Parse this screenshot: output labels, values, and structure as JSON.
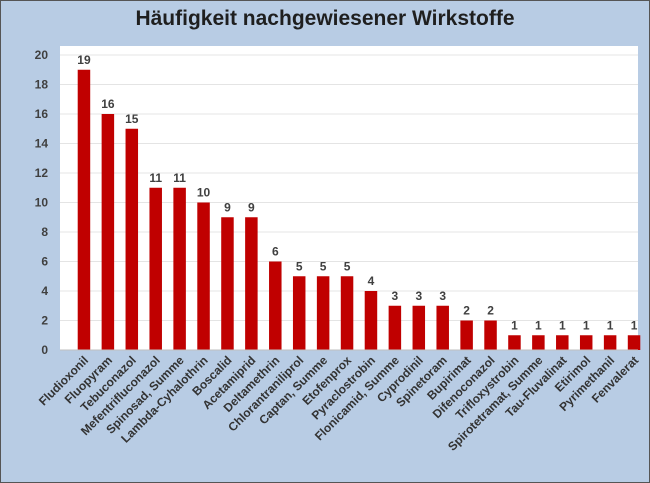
{
  "chart_data": {
    "type": "bar",
    "title": "Häufigkeit nachgewiesener Wirkstoffe",
    "xlabel": "",
    "ylabel": "",
    "ylim": [
      0,
      20
    ],
    "yticks": [
      0,
      2,
      4,
      6,
      8,
      10,
      12,
      14,
      16,
      18,
      20
    ],
    "grid": true,
    "legend": "none",
    "bar_color": "#c00000",
    "categories": [
      "Fludioxonil",
      "Fluopyram",
      "Tebuconazol",
      "Mefentrifluconazol",
      "Spinosad, Summe",
      "Lambda-Cyhalothrin",
      "Boscalid",
      "Acetamiprid",
      "Deltamethrin",
      "Chlorantraniliprol",
      "Captan, Summe",
      "Etofenprox",
      "Pyraclostrobin",
      "Flonicamid, Summe",
      "Cyprodinil",
      "Spinetoram",
      "Bupirimat",
      "Difenoconazol",
      "Trifloxystrobin",
      "Spirotetramat, Summe",
      "Tau-Fluvalinat",
      "Etirimol",
      "Pyrimethanil",
      "Fenvalerat"
    ],
    "values": [
      19,
      16,
      15,
      11,
      11,
      10,
      9,
      9,
      6,
      5,
      5,
      5,
      4,
      3,
      3,
      3,
      2,
      2,
      1,
      1,
      1,
      1,
      1,
      1
    ]
  }
}
